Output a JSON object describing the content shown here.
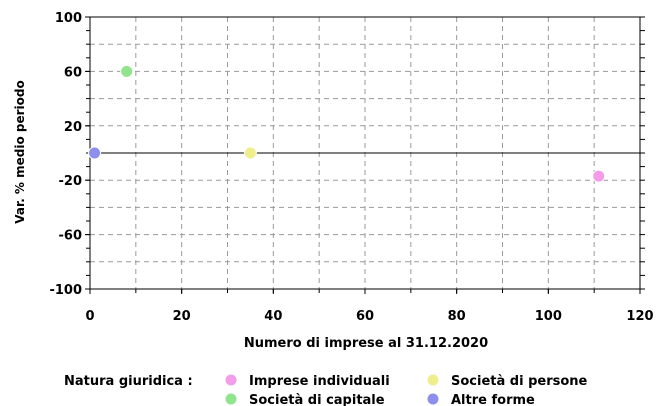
{
  "chart_data": {
    "type": "scatter",
    "title": "",
    "xlabel": "Numero di imprese al 31.12.2020",
    "ylabel": "Var. % medio periodo",
    "xlim": [
      0,
      120
    ],
    "ylim": [
      -100,
      100
    ],
    "x_ticks": [
      "0",
      "20",
      "40",
      "60",
      "80",
      "100",
      "120"
    ],
    "y_ticks": [
      "100",
      "60",
      "20",
      "-20",
      "-60",
      "-100"
    ],
    "grid": true,
    "legend_position": "bottom",
    "legend_title": "Natura giuridica :",
    "series": [
      {
        "name": "Imprese individuali",
        "color": "#f39ce8",
        "points": [
          {
            "x": 111,
            "y": -17
          }
        ]
      },
      {
        "name": "Società di persone",
        "color": "#f0ee8c",
        "points": [
          {
            "x": 35,
            "y": 0
          }
        ]
      },
      {
        "name": "Società di capitale",
        "color": "#8fe48c",
        "points": [
          {
            "x": 8,
            "y": 60
          }
        ]
      },
      {
        "name": "Altre forme",
        "color": "#8c90ec",
        "points": [
          {
            "x": 1,
            "y": 0
          }
        ]
      }
    ]
  }
}
